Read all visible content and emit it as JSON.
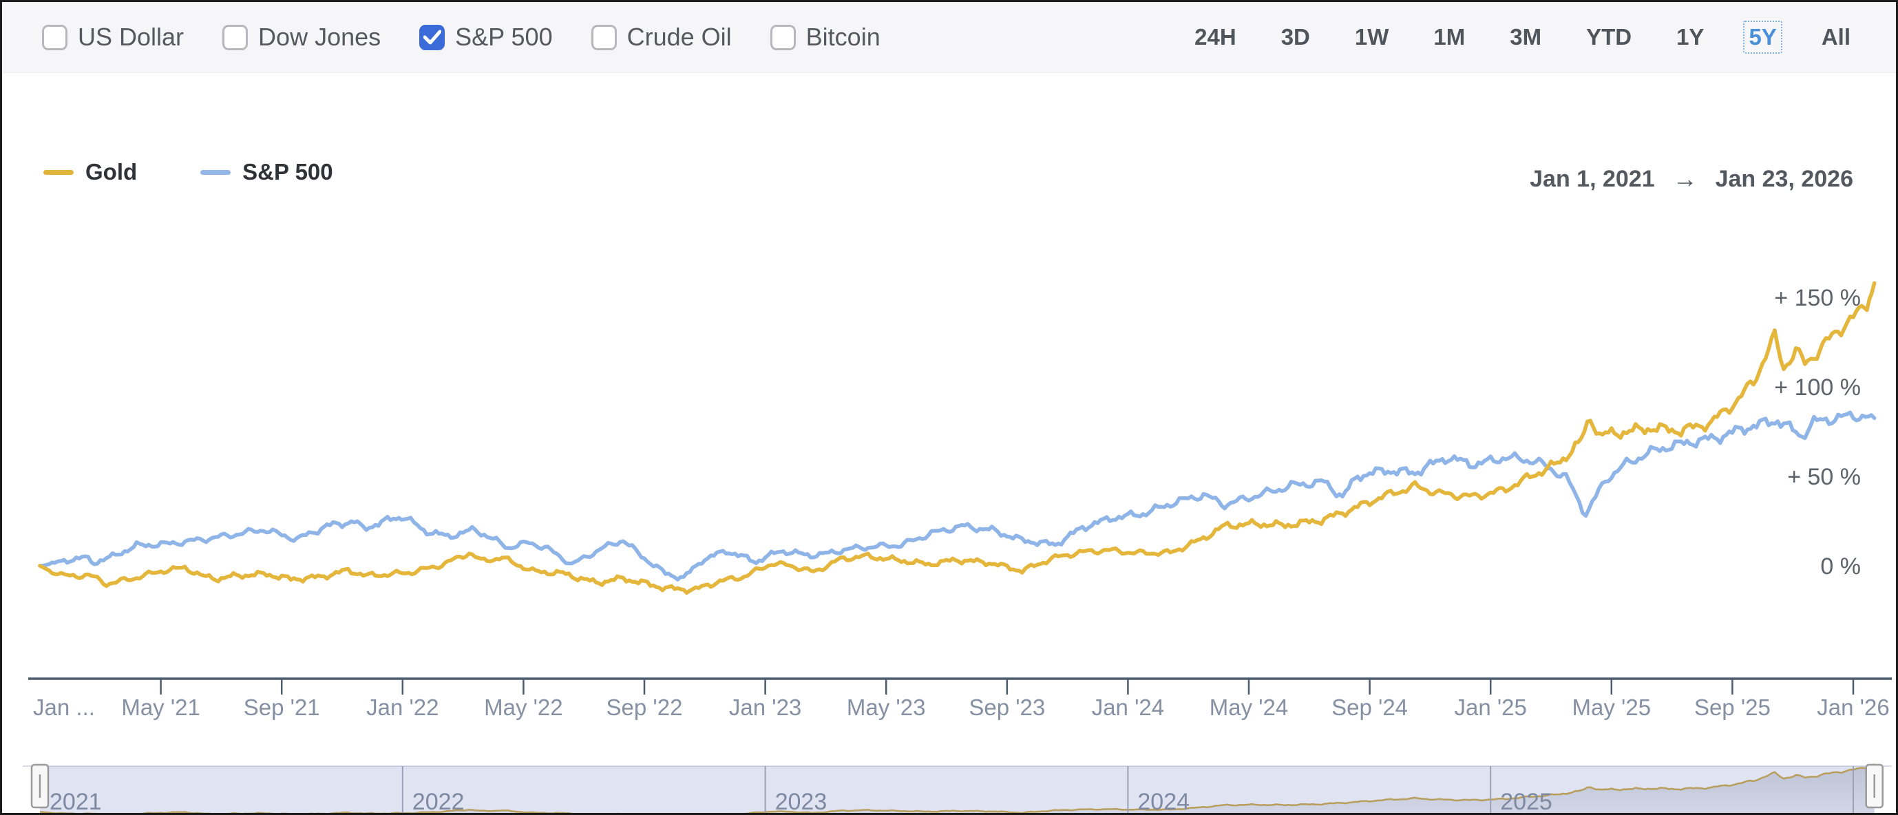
{
  "header": {
    "compare_options": [
      {
        "label": "US Dollar",
        "checked": false
      },
      {
        "label": "Dow Jones",
        "checked": false
      },
      {
        "label": "S&P 500",
        "checked": true
      },
      {
        "label": "Crude Oil",
        "checked": false
      },
      {
        "label": "Bitcoin",
        "checked": false
      }
    ],
    "range_buttons": [
      {
        "label": "24H",
        "active": false
      },
      {
        "label": "3D",
        "active": false
      },
      {
        "label": "1W",
        "active": false
      },
      {
        "label": "1M",
        "active": false
      },
      {
        "label": "3M",
        "active": false
      },
      {
        "label": "YTD",
        "active": false
      },
      {
        "label": "1Y",
        "active": false
      },
      {
        "label": "5Y",
        "active": true
      },
      {
        "label": "All",
        "active": false
      }
    ]
  },
  "legend": [
    {
      "name": "Gold",
      "color": "#e2b43c"
    },
    {
      "name": "S&P 500",
      "color": "#93b7e9"
    }
  ],
  "date_range": {
    "start": "Jan 1, 2021",
    "arrow": "→",
    "end": "Jan 23, 2026"
  },
  "colors": {
    "gold_line": "#e5b63c",
    "sp500_line": "#8fb4e8",
    "checkbox_active": "#3b6bd9",
    "range_active": "#4a90d9",
    "axis_line": "#4d5b6e",
    "x_label": "#8590a2",
    "y_label": "#5c6269",
    "nav_mask": "rgba(108,126,196,0.22)",
    "nav_grid": "#9aa2b5",
    "nav_year": "#7f89a1",
    "nav_gold": "#cda63e"
  },
  "chart_data": {
    "type": "line",
    "title": "Gold vs S&P 500 percent change, Jan 1 2021 - Jan 23 2026",
    "x_unit": "months_since_Jan_2021",
    "y_unit": "percent_change",
    "ylim": [
      -25,
      175
    ],
    "grid": false,
    "legend_position": "top-left",
    "y_ticks": [
      {
        "value": 150,
        "label": "+ 150 %"
      },
      {
        "value": 100,
        "label": "+ 100 %"
      },
      {
        "value": 50,
        "label": "+ 50 %"
      },
      {
        "value": 0,
        "label": "0 %"
      }
    ],
    "x_ticks": [
      {
        "month": 0,
        "label": "Jan ..."
      },
      {
        "month": 4,
        "label": "May '21"
      },
      {
        "month": 8,
        "label": "Sep '21"
      },
      {
        "month": 12,
        "label": "Jan '22"
      },
      {
        "month": 16,
        "label": "May '22"
      },
      {
        "month": 20,
        "label": "Sep '22"
      },
      {
        "month": 24,
        "label": "Jan '23"
      },
      {
        "month": 28,
        "label": "May '23"
      },
      {
        "month": 32,
        "label": "Sep '23"
      },
      {
        "month": 36,
        "label": "Jan '24"
      },
      {
        "month": 40,
        "label": "May '24"
      },
      {
        "month": 44,
        "label": "Sep '24"
      },
      {
        "month": 48,
        "label": "Jan '25"
      },
      {
        "month": 52,
        "label": "May '25"
      },
      {
        "month": 56,
        "label": "Sep '25"
      },
      {
        "month": 60,
        "label": "Jan '26"
      }
    ],
    "series": [
      {
        "name": "Gold",
        "color": "#e5b63c",
        "points": [
          [
            0,
            0
          ],
          [
            0.4,
            -3.5
          ],
          [
            1,
            -6
          ],
          [
            1.6,
            -5
          ],
          [
            2.2,
            -10
          ],
          [
            2.7,
            -8.5
          ],
          [
            3.2,
            -6.5
          ],
          [
            4,
            -3
          ],
          [
            4.8,
            -1
          ],
          [
            5.4,
            -6
          ],
          [
            5.9,
            -7.2
          ],
          [
            6.5,
            -5.5
          ],
          [
            7.5,
            -4.6
          ],
          [
            8.3,
            -7.5
          ],
          [
            9.3,
            -6.2
          ],
          [
            10.2,
            -2.5
          ],
          [
            10.8,
            -5.5
          ],
          [
            11.5,
            -4.8
          ],
          [
            12.3,
            -3.6
          ],
          [
            13.3,
            0.5
          ],
          [
            14.2,
            7.2
          ],
          [
            14.6,
            2.8
          ],
          [
            15.3,
            4.5
          ],
          [
            16.3,
            -3
          ],
          [
            17.3,
            -4.2
          ],
          [
            18.4,
            -9.5
          ],
          [
            19.3,
            -7
          ],
          [
            20.2,
            -10.5
          ],
          [
            20.8,
            -12.8
          ],
          [
            21.7,
            -13.3
          ],
          [
            22.4,
            -9
          ],
          [
            23.3,
            -6
          ],
          [
            24.2,
            1.2
          ],
          [
            24.8,
            0.3
          ],
          [
            25.6,
            -3.5
          ],
          [
            26.5,
            3.8
          ],
          [
            27.3,
            5.4
          ],
          [
            28.4,
            3.2
          ],
          [
            29.4,
            0.8
          ],
          [
            30.3,
            3.3
          ],
          [
            31.4,
            1.8
          ],
          [
            32.5,
            -2.8
          ],
          [
            33.5,
            4.2
          ],
          [
            34.4,
            7.5
          ],
          [
            35.3,
            8.8
          ],
          [
            36.3,
            7.2
          ],
          [
            37.4,
            7.3
          ],
          [
            38.4,
            14.5
          ],
          [
            39.2,
            22.3
          ],
          [
            40.2,
            23.5
          ],
          [
            41.2,
            22.6
          ],
          [
            42.4,
            25.5
          ],
          [
            43.4,
            31.5
          ],
          [
            44.4,
            38.5
          ],
          [
            45.5,
            44.5
          ],
          [
            46.3,
            40.5
          ],
          [
            47.4,
            38.6
          ],
          [
            48.4,
            42
          ],
          [
            49.4,
            50.5
          ],
          [
            50.3,
            58
          ],
          [
            51.0,
            70
          ],
          [
            51.3,
            83
          ],
          [
            51.6,
            73
          ],
          [
            52.3,
            74.5
          ],
          [
            53.3,
            77
          ],
          [
            54.3,
            75.5
          ],
          [
            55.3,
            80
          ],
          [
            56.2,
            93
          ],
          [
            56.7,
            103
          ],
          [
            57.4,
            128
          ],
          [
            57.7,
            111
          ],
          [
            58.1,
            120
          ],
          [
            58.4,
            113
          ],
          [
            58.9,
            121
          ],
          [
            59.4,
            130
          ],
          [
            59.8,
            136
          ],
          [
            60.1,
            140
          ],
          [
            60.45,
            147
          ],
          [
            60.7,
            158
          ]
        ]
      },
      {
        "name": "S&P 500",
        "color": "#8fb4e8",
        "points": [
          [
            0,
            0
          ],
          [
            0.4,
            1.2
          ],
          [
            0.9,
            3.2
          ],
          [
            1.5,
            4.6
          ],
          [
            1.8,
            1.8
          ],
          [
            2.4,
            5.2
          ],
          [
            3.2,
            11.3
          ],
          [
            4.2,
            12.2
          ],
          [
            5.2,
            14.3
          ],
          [
            6.2,
            16.8
          ],
          [
            7.4,
            20.3
          ],
          [
            8.5,
            14.8
          ],
          [
            9.5,
            22.3
          ],
          [
            10.4,
            24.8
          ],
          [
            10.7,
            20.8
          ],
          [
            11.7,
            26.5
          ],
          [
            12.05,
            27.5
          ],
          [
            12.7,
            19.8
          ],
          [
            13.5,
            16.3
          ],
          [
            14.4,
            20.3
          ],
          [
            15.5,
            10.2
          ],
          [
            16.2,
            13
          ],
          [
            16.8,
            9.6
          ],
          [
            17.6,
            0.8
          ],
          [
            18.6,
            9.8
          ],
          [
            19.3,
            14.4
          ],
          [
            19.9,
            5.5
          ],
          [
            20.7,
            -4.3
          ],
          [
            21.3,
            -6.8
          ],
          [
            21.9,
            3
          ],
          [
            22.7,
            8.4
          ],
          [
            23.7,
            2.3
          ],
          [
            24.5,
            8.4
          ],
          [
            25.5,
            5.8
          ],
          [
            26.1,
            7
          ],
          [
            26.7,
            9.3
          ],
          [
            27.6,
            10.8
          ],
          [
            28.5,
            11.6
          ],
          [
            29.5,
            18.2
          ],
          [
            30.5,
            22.2
          ],
          [
            31.5,
            20
          ],
          [
            32.5,
            14.3
          ],
          [
            33.6,
            11.8
          ],
          [
            34.5,
            21.4
          ],
          [
            35.5,
            26.8
          ],
          [
            36.5,
            29
          ],
          [
            37.5,
            35.2
          ],
          [
            38.5,
            39.7
          ],
          [
            39.2,
            34.1
          ],
          [
            40.5,
            40.4
          ],
          [
            41.5,
            45.2
          ],
          [
            42.5,
            46.8
          ],
          [
            43.1,
            38.5
          ],
          [
            43.6,
            50.2
          ],
          [
            44.5,
            53.3
          ],
          [
            45.5,
            52
          ],
          [
            46.5,
            60.4
          ],
          [
            47.5,
            56.6
          ],
          [
            48.5,
            60.6
          ],
          [
            49.5,
            58.5
          ],
          [
            50.5,
            49.5
          ],
          [
            51.15,
            28.7
          ],
          [
            51.8,
            48
          ],
          [
            52.5,
            57.2
          ],
          [
            53.5,
            65
          ],
          [
            54.5,
            68.8
          ],
          [
            55.5,
            71.6
          ],
          [
            56.5,
            77.4
          ],
          [
            57.5,
            81.3
          ],
          [
            58.3,
            72.5
          ],
          [
            58.7,
            80.3
          ],
          [
            59.5,
            82.8
          ],
          [
            60.2,
            84
          ],
          [
            60.7,
            82.5
          ]
        ]
      }
    ],
    "navigator": {
      "series": "Gold",
      "years": [
        {
          "month": 0,
          "label": "2021"
        },
        {
          "month": 12,
          "label": "2022"
        },
        {
          "month": 24,
          "label": "2023"
        },
        {
          "month": 36,
          "label": "2024"
        },
        {
          "month": 48,
          "label": "2025"
        },
        {
          "month": 60,
          "label": ""
        }
      ]
    }
  }
}
